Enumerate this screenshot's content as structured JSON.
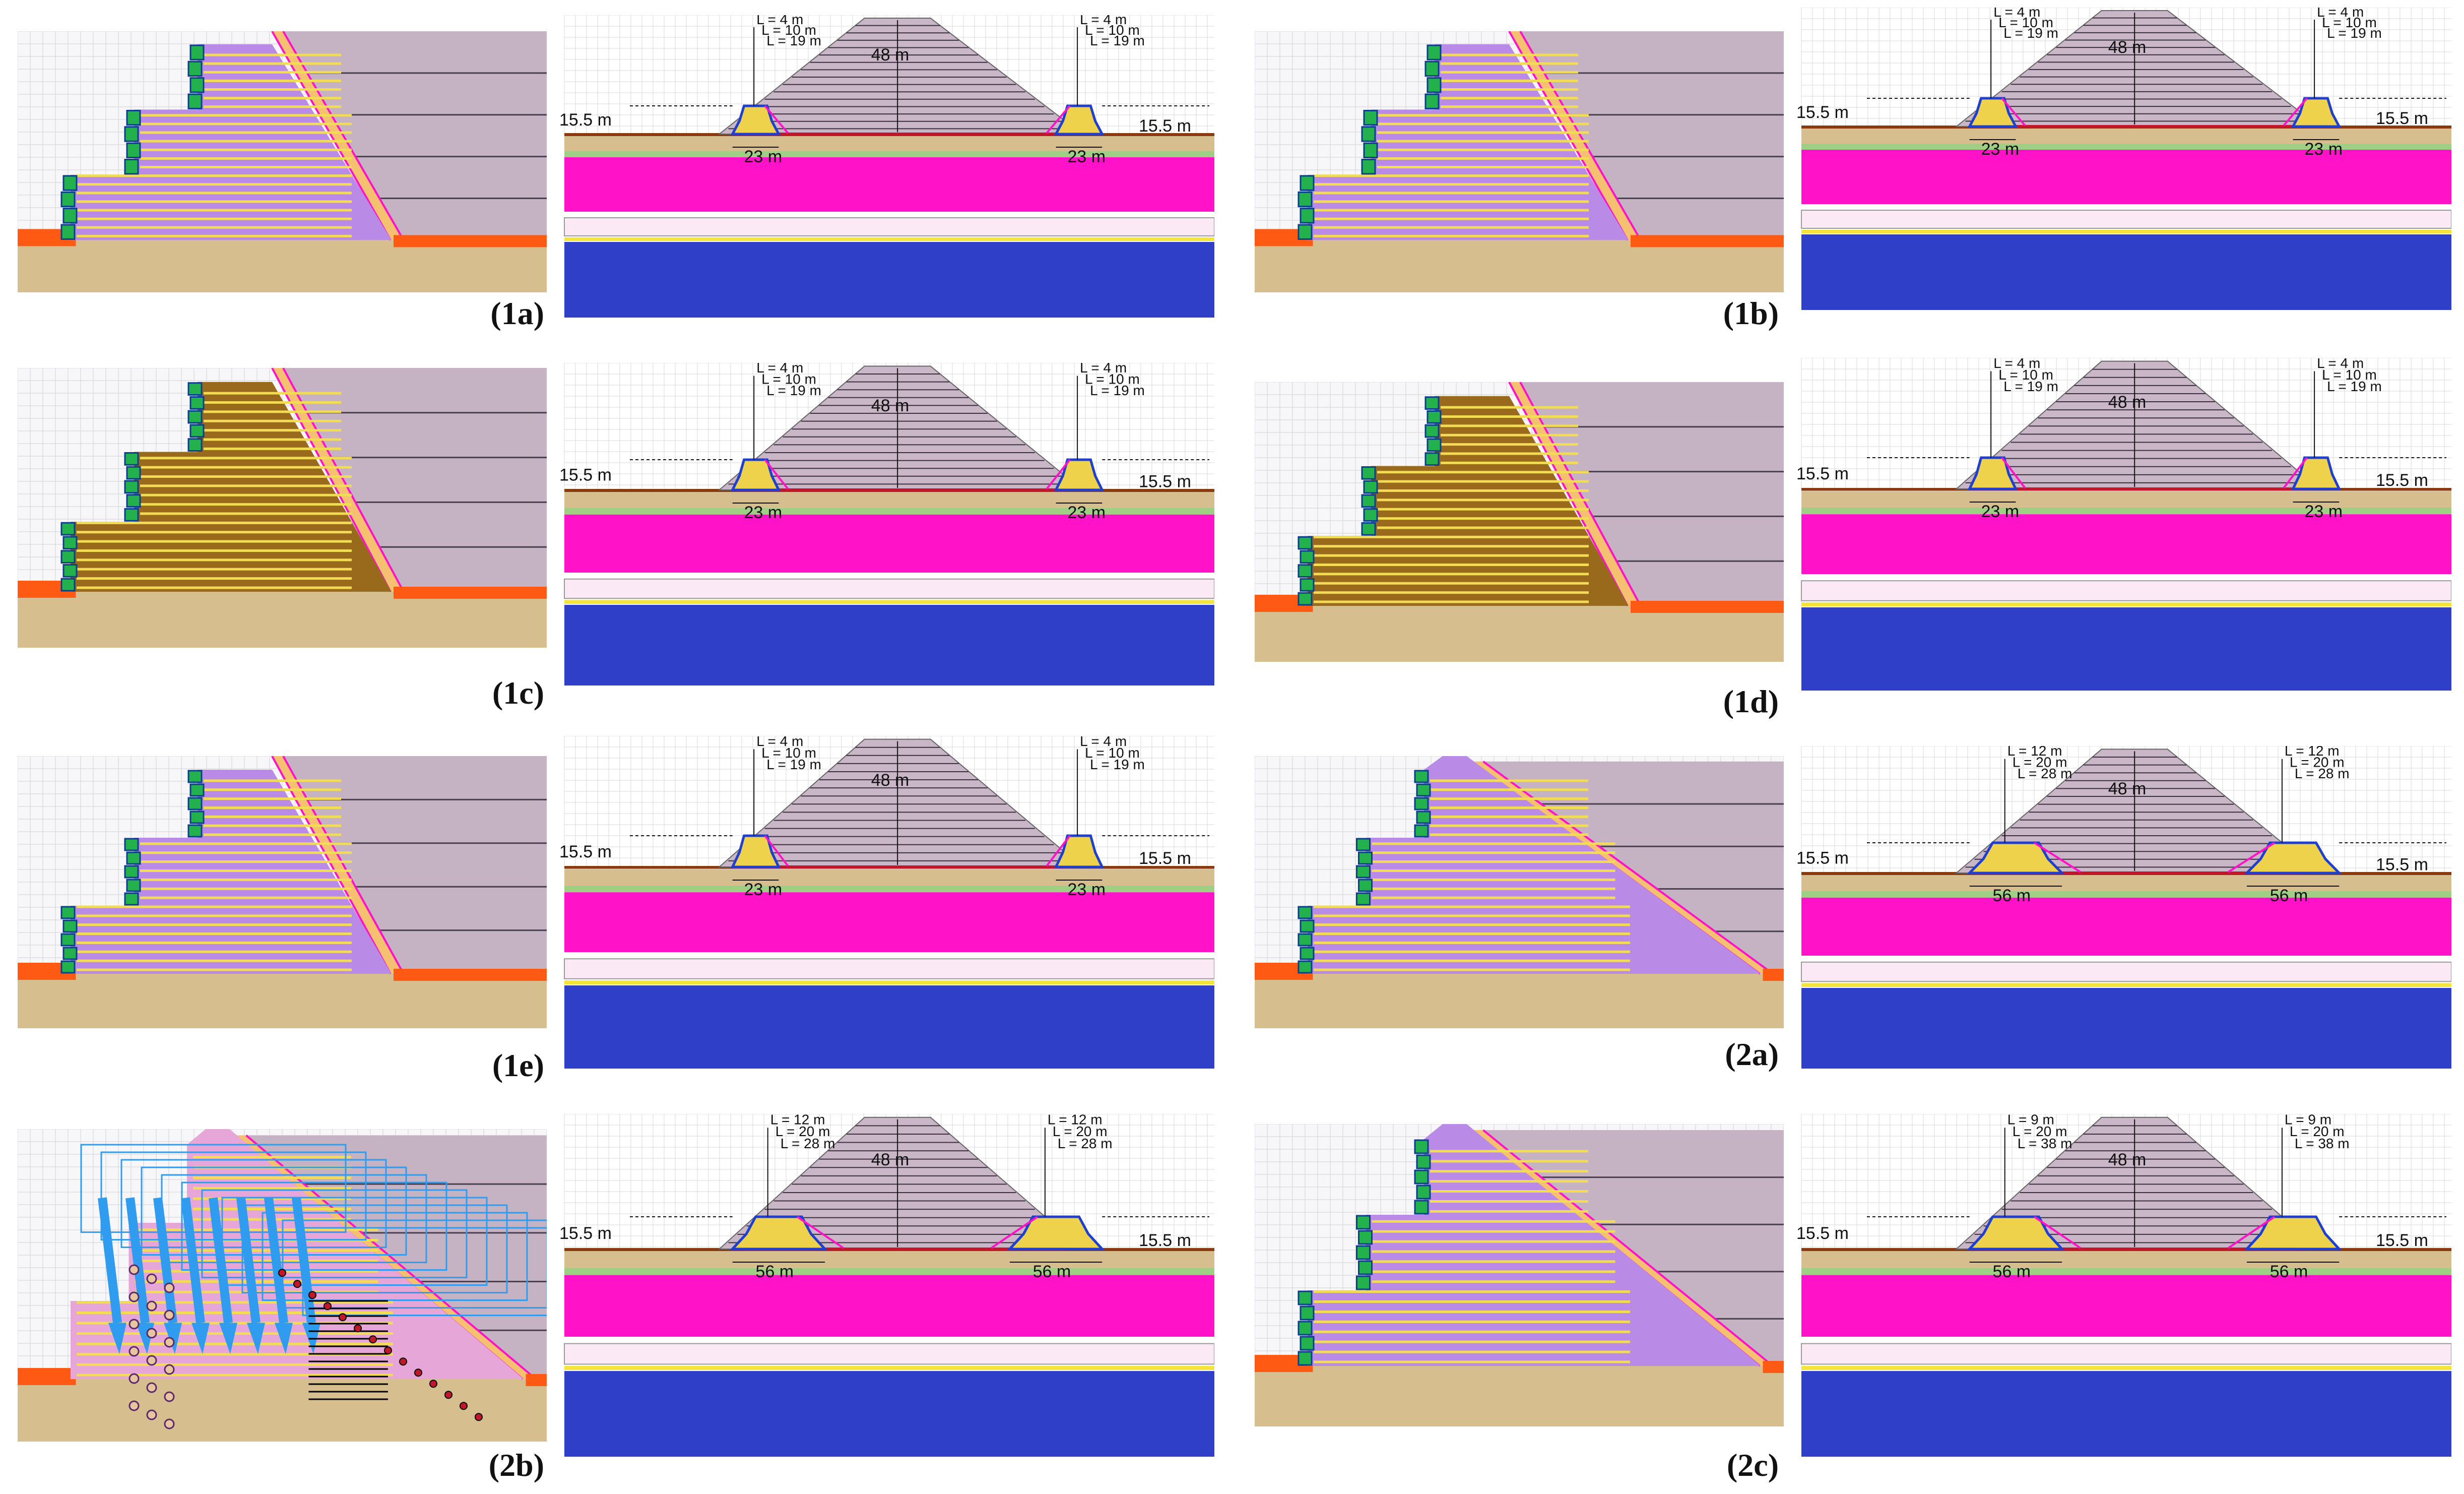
{
  "figure": {
    "panels": [
      {
        "id": "1a",
        "label": "(1a)",
        "type": 1,
        "material": "purple",
        "facing": "blocks",
        "dims": {
          "l_top": "L = 4 m",
          "l_mid": "L = 10 m",
          "l_low": "L = 19 m",
          "height": "15.5 m",
          "base": "23 m",
          "dam_height": "48 m"
        }
      },
      {
        "id": "1b",
        "label": "(1b)",
        "type": 1,
        "material": "purple",
        "facing": "blocks",
        "dims": {
          "l_top": "L = 4 m",
          "l_mid": "L = 10 m",
          "l_low": "L = 19 m",
          "height": "15.5 m",
          "base": "23 m",
          "dam_height": "48 m"
        }
      },
      {
        "id": "1c",
        "label": "(1c)",
        "type": 1,
        "material": "brown",
        "facing": "blocks",
        "dims": {
          "l_top": "L = 4 m",
          "l_mid": "L = 10 m",
          "l_low": "L = 19 m",
          "height": "15.5 m",
          "base": "23 m",
          "dam_height": "48 m"
        }
      },
      {
        "id": "1d",
        "label": "(1d)",
        "type": 1,
        "material": "brown",
        "facing": "blocks",
        "dims": {
          "l_top": "L = 4 m",
          "l_mid": "L = 10 m",
          "l_low": "L = 19 m",
          "height": "15.5 m",
          "base": "23 m",
          "dam_height": "48 m"
        }
      },
      {
        "id": "1e",
        "label": "(1e)",
        "type": 1,
        "material": "purple",
        "facing": "blocks",
        "dims": {
          "l_top": "L = 4 m",
          "l_mid": "L = 10 m",
          "l_low": "L = 19 m",
          "height": "15.5 m",
          "base": "23 m",
          "dam_height": "48 m"
        }
      },
      {
        "id": "2a",
        "label": "(2a)",
        "type": 2,
        "material": "purple",
        "facing": "blocks",
        "dims": {
          "l_top": "L = 12 m",
          "l_mid": "L = 20 m",
          "l_low": "L = 28 m",
          "height": "15.5 m",
          "base": "56 m",
          "dam_height": "48 m"
        }
      },
      {
        "id": "2b",
        "label": "(2b)",
        "type": 2,
        "material": "pink",
        "facing": "forces",
        "dims": {
          "l_top": "L = 12 m",
          "l_mid": "L = 20 m",
          "l_low": "L = 28 m",
          "height": "15.5 m",
          "base": "56 m",
          "dam_height": "48 m"
        }
      },
      {
        "id": "2c",
        "label": "(2c)",
        "type": 2,
        "material": "purple",
        "facing": "blocks",
        "dims": {
          "l_top": "L = 9 m",
          "l_mid": "L = 20 m",
          "l_low": "L = 38 m",
          "height": "15.5 m",
          "base": "56 m",
          "dam_height": "48 m"
        }
      }
    ],
    "colors": {
      "grid_bg": "#f7f7f9",
      "grid_line": "#d9d9de",
      "embankment": "#c5b3c4",
      "embank_line": "#4a4050",
      "purple_fill": "#b98be6",
      "brown_fill": "#9a6a1c",
      "pink_fill": "#e6a6d8",
      "reinforcement": "#f2dc55",
      "block": "#22b14c",
      "block_edge": "#0b3d91",
      "sand": "#d7be8f",
      "orange": "#ff5a14",
      "filter": "#f5c06f",
      "magenta": "#ff12c8",
      "navy": "#2f3fc8",
      "pale": "#fbeaf6",
      "green_layer": "#9fcf85",
      "dam_fill": "#c9b6c6",
      "berm_yellow": "#efd24c",
      "berm_blue": "#1f3fd1",
      "crest_red": "#c0182a",
      "force_blue": "#2f9cf0"
    }
  }
}
